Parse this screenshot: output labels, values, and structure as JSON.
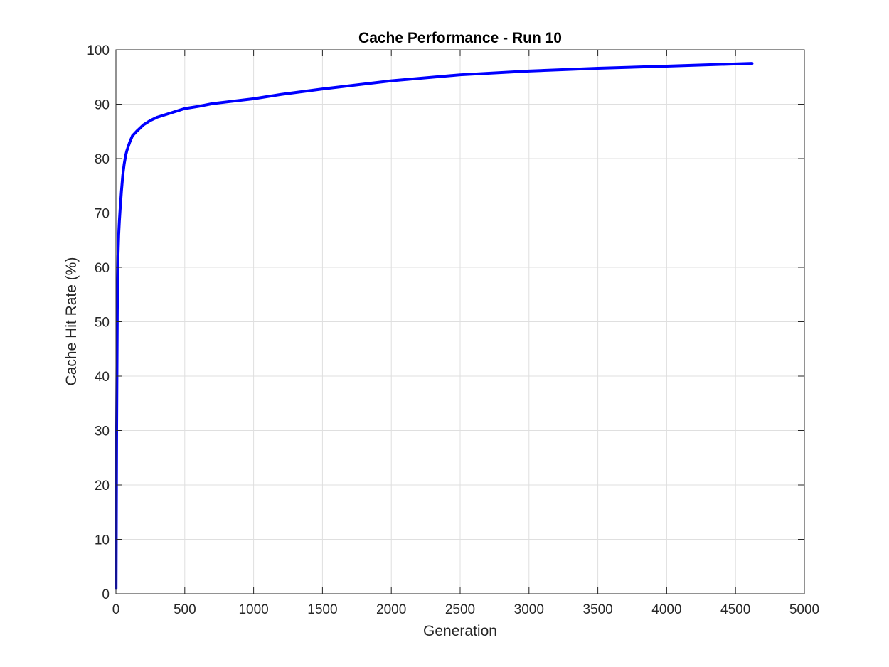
{
  "chart_data": {
    "type": "line",
    "title": "Cache Performance - Run 10",
    "xlabel": "Generation",
    "ylabel": "Cache Hit Rate (%)",
    "xlim": [
      0,
      5000
    ],
    "ylim": [
      0,
      100
    ],
    "xticks": [
      0,
      500,
      1000,
      1500,
      2000,
      2500,
      3000,
      3500,
      4000,
      4500,
      5000
    ],
    "yticks": [
      0,
      10,
      20,
      30,
      40,
      50,
      60,
      70,
      80,
      90,
      100
    ],
    "xtick_labels": [
      "0",
      "500",
      "1000",
      "1500",
      "2000",
      "2500",
      "3000",
      "3500",
      "4000",
      "4500",
      "5000"
    ],
    "ytick_labels": [
      "0",
      "10",
      "20",
      "30",
      "40",
      "50",
      "60",
      "70",
      "80",
      "90",
      "100"
    ],
    "grid": true,
    "line_color": "#0000ff",
    "series": [
      {
        "x": [
          1,
          5,
          10,
          15,
          20,
          25,
          30,
          40,
          50,
          60,
          70,
          80,
          100,
          120,
          150,
          200,
          250,
          300,
          400,
          500,
          600,
          700,
          800,
          1000,
          1200,
          1500,
          2000,
          2500,
          3000,
          3500,
          4000,
          4500,
          4620
        ],
        "y": [
          1,
          30,
          52,
          62,
          66,
          68.5,
          70.5,
          74,
          77,
          79,
          80.5,
          81.5,
          83,
          84.2,
          85,
          86.2,
          87,
          87.6,
          88.4,
          89.2,
          89.6,
          90.1,
          90.4,
          91,
          91.8,
          92.8,
          94.3,
          95.4,
          96.1,
          96.6,
          97,
          97.4,
          97.5
        ]
      }
    ]
  }
}
